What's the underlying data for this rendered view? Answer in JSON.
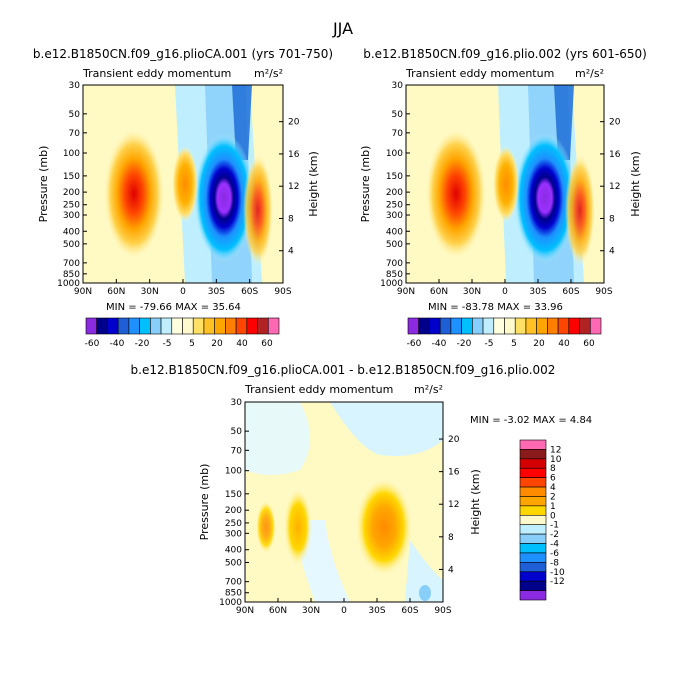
{
  "figure_title": "JJA",
  "panels": [
    {
      "title": "b.e12.B1850CN.f09_g16.plioCA.001 (yrs 701-750)",
      "subtitle": "Transient eddy momentum",
      "units": "m²/s²",
      "stats": "MIN = -79.66   MAX = 35.64"
    },
    {
      "title": "b.e12.B1850CN.f09_g16.plio.002 (yrs 601-650)",
      "subtitle": "Transient eddy momentum",
      "units": "m²/s²",
      "stats": "MIN = -83.78   MAX = 33.96"
    },
    {
      "title": "b.e12.B1850CN.f09_g16.plioCA.001 - b.e12.B1850CN.f09_g16.plio.002",
      "subtitle": "Transient eddy momentum",
      "units": "m²/s²",
      "stats": "MIN =   -3.02  MAX =   4.84"
    }
  ],
  "colorbar_top": {
    "labels": [
      "-60",
      "-40",
      "-20",
      "-5",
      "5",
      "20",
      "40",
      "60"
    ],
    "colors": [
      "#8a2be2",
      "#00008b",
      "#0000cd",
      "#1e5fd8",
      "#1e90ff",
      "#00bfff",
      "#87cefa",
      "#bfefff",
      "#ffffe0",
      "#fffacd",
      "#ffe066",
      "#ffc125",
      "#ffa500",
      "#ff7f00",
      "#ff4500",
      "#ff0000",
      "#b22222",
      "#ff69b4"
    ]
  },
  "colorbar_bottom": {
    "labels": [
      "12",
      "10",
      "8",
      "6",
      "4",
      "2",
      "1",
      "0",
      "-1",
      "-2",
      "-4",
      "-6",
      "-8",
      "-10",
      "-12"
    ],
    "colors": [
      "#ff69b4",
      "#8b1a1a",
      "#d40000",
      "#ff0000",
      "#ff4500",
      "#ff8c00",
      "#ffa500",
      "#ffd700",
      "#fffacd",
      "#bfefff",
      "#87cefa",
      "#00bfff",
      "#1e90ff",
      "#1e5fd8",
      "#0000cd",
      "#00008b",
      "#8a2be2"
    ]
  },
  "chart_data": [
    {
      "type": "heatmap",
      "title": "b.e12.B1850CN.f09_g16.plioCA.001 (yrs 701-750)",
      "xlabel": "",
      "ylabel": "Pressure (mb)",
      "y2label": "Height (km)",
      "x_ticks": [
        "90N",
        "60N",
        "30N",
        "0",
        "30S",
        "60S",
        "90S"
      ],
      "x_range": [
        90,
        -90
      ],
      "y_ticks": [
        "30",
        "50",
        "70",
        "100",
        "150",
        "200",
        "250",
        "300",
        "400",
        "500",
        "700",
        "850",
        "1000"
      ],
      "y_range": [
        1000,
        30
      ],
      "y_scale": "log",
      "y2_ticks": [
        "4",
        "8",
        "12",
        "16",
        "20"
      ],
      "min": -79.66,
      "max": 35.64,
      "features": [
        {
          "lat": 45,
          "p": 200,
          "peak": 35,
          "sign": "positive"
        },
        {
          "lat": 5,
          "p": 180,
          "peak": 15,
          "sign": "positive"
        },
        {
          "lat": -40,
          "p": 220,
          "peak": -80,
          "sign": "negative"
        },
        {
          "lat": -70,
          "p": 250,
          "peak": 22,
          "sign": "positive"
        }
      ]
    },
    {
      "type": "heatmap",
      "title": "b.e12.B1850CN.f09_g16.plio.002 (yrs 601-650)",
      "xlabel": "",
      "ylabel": "Pressure (mb)",
      "y2label": "Height (km)",
      "x_ticks": [
        "90N",
        "60N",
        "30N",
        "0",
        "30S",
        "60S",
        "90S"
      ],
      "x_range": [
        90,
        -90
      ],
      "y_ticks": [
        "30",
        "50",
        "70",
        "100",
        "150",
        "200",
        "250",
        "300",
        "400",
        "500",
        "700",
        "850",
        "1000"
      ],
      "y_range": [
        1000,
        30
      ],
      "y_scale": "log",
      "y2_ticks": [
        "4",
        "8",
        "12",
        "16",
        "20"
      ],
      "min": -83.78,
      "max": 33.96,
      "features": [
        {
          "lat": 45,
          "p": 200,
          "peak": 34,
          "sign": "positive"
        },
        {
          "lat": 5,
          "p": 180,
          "peak": 15,
          "sign": "positive"
        },
        {
          "lat": -40,
          "p": 220,
          "peak": -84,
          "sign": "negative"
        },
        {
          "lat": -70,
          "p": 250,
          "peak": 22,
          "sign": "positive"
        }
      ]
    },
    {
      "type": "heatmap",
      "title": "b.e12.B1850CN.f09_g16.plioCA.001 - b.e12.B1850CN.f09_g16.plio.002",
      "xlabel": "",
      "ylabel": "Pressure (mb)",
      "y2label": "Height (km)",
      "x_ticks": [
        "90N",
        "60N",
        "30N",
        "0",
        "30S",
        "60S",
        "90S"
      ],
      "x_range": [
        90,
        -90
      ],
      "y_ticks": [
        "30",
        "50",
        "70",
        "100",
        "150",
        "200",
        "250",
        "300",
        "400",
        "500",
        "700",
        "850",
        "1000"
      ],
      "y_range": [
        1000,
        30
      ],
      "y_scale": "log",
      "y2_ticks": [
        "4",
        "8",
        "12",
        "16",
        "20"
      ],
      "min": -3.02,
      "max": 4.84,
      "features": [
        {
          "lat": 68,
          "p": 270,
          "peak": 3,
          "sign": "positive"
        },
        {
          "lat": 40,
          "p": 250,
          "peak": 1.5,
          "sign": "positive"
        },
        {
          "lat": -40,
          "p": 250,
          "peak": 4.8,
          "sign": "positive"
        }
      ]
    }
  ]
}
